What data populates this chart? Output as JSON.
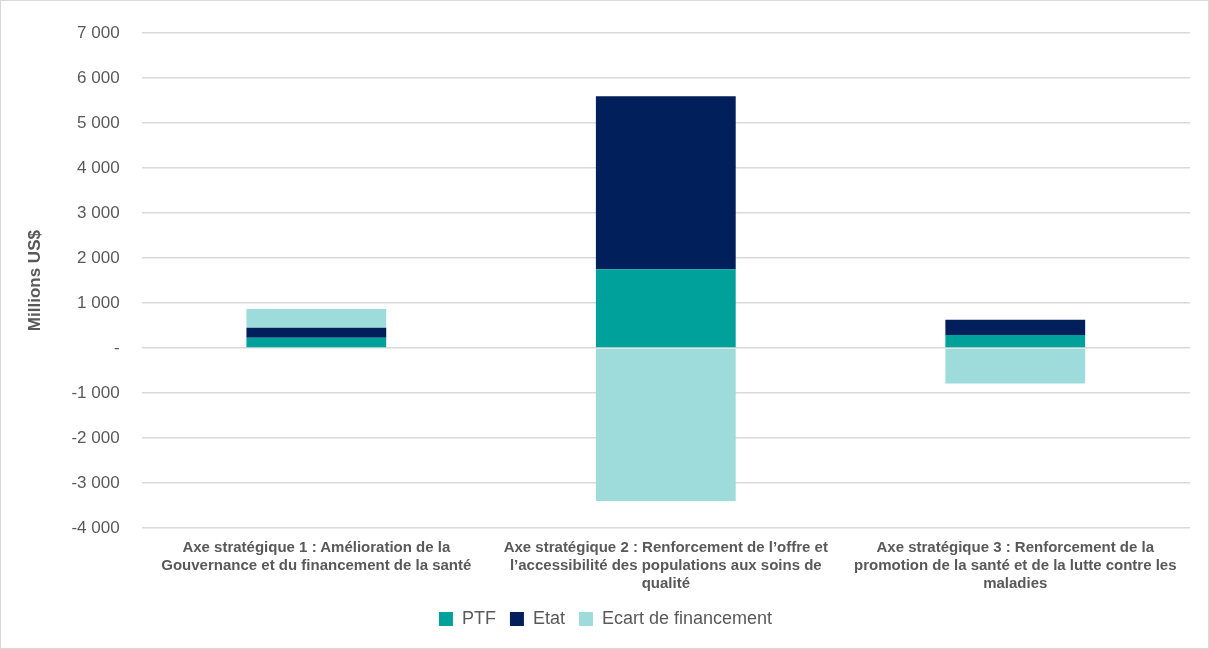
{
  "chart_data": {
    "type": "bar",
    "stacked": true,
    "ylabel": "Millions US$",
    "categories": [
      "Axe stratégique 1 : Amélioration de la Gouvernance et du financement de la santé",
      "Axe stratégique 2 : Renforcement de l’offre et l’accessibilité des populations aux soins de qualité",
      "Axe stratégique 3 : Renforcement de la promotion de la santé et de la lutte contre les maladies"
    ],
    "series": [
      {
        "name": "PTF",
        "color": "#00a19a",
        "values": [
          230,
          1750,
          290
        ]
      },
      {
        "name": "Etat",
        "color": "#001f5b",
        "values": [
          220,
          3850,
          340
        ]
      },
      {
        "name": "Ecart de financement",
        "color": "#9edcdc",
        "values": [
          420,
          -3400,
          -790
        ]
      }
    ],
    "ylim": [
      -4000,
      7000
    ],
    "yticks": [
      {
        "value": -4000,
        "label": "-4 000"
      },
      {
        "value": -3000,
        "label": "-3 000"
      },
      {
        "value": -2000,
        "label": "-2 000"
      },
      {
        "value": -1000,
        "label": "-1 000"
      },
      {
        "value": 0,
        "label": "-"
      },
      {
        "value": 1000,
        "label": "1 000"
      },
      {
        "value": 2000,
        "label": "2 000"
      },
      {
        "value": 3000,
        "label": "3 000"
      },
      {
        "value": 4000,
        "label": "4 000"
      },
      {
        "value": 5000,
        "label": "5 000"
      },
      {
        "value": 6000,
        "label": "6 000"
      },
      {
        "value": 7000,
        "label": "7 000"
      }
    ],
    "grid": "y",
    "legend": "bottom"
  }
}
